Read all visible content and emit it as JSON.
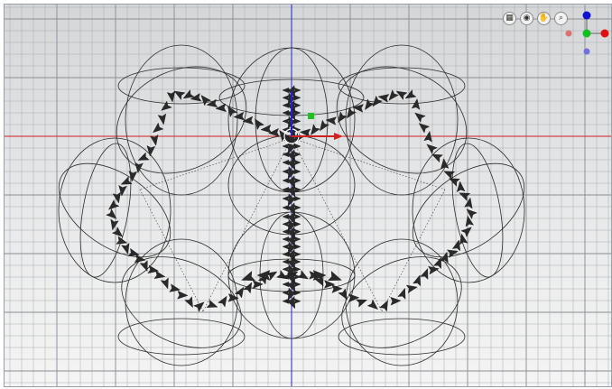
{
  "viewport": {
    "toolbar": [
      {
        "name": "grid-toggle-button",
        "icon": "grid-icon",
        "glyph": "▦"
      },
      {
        "name": "camera-button",
        "icon": "camera-icon",
        "glyph": "◉"
      },
      {
        "name": "pan-button",
        "icon": "hand-icon",
        "glyph": "✋"
      },
      {
        "name": "zoom-button",
        "icon": "magnifier-icon",
        "glyph": "⌕"
      }
    ],
    "gizmo": {
      "x_color": "#e01010",
      "y_color": "#10c020",
      "z_color": "#1010d0",
      "neg_x_color": "#e07070",
      "neg_z_color": "#7070e0"
    },
    "axis_colors": {
      "x": "#d02020",
      "y": "#20c020",
      "z": "#2020d0"
    }
  }
}
